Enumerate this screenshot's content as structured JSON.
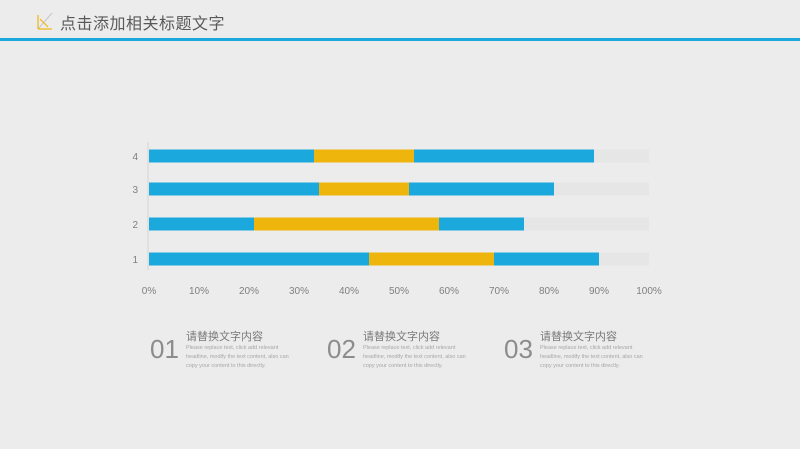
{
  "header": {
    "title": "点击添加相关标题文字",
    "accent_color": "#1ba8dc",
    "icon": "chart-line-icon"
  },
  "chart_data": {
    "type": "bar",
    "orientation": "horizontal",
    "stacked": true,
    "categories": [
      "1",
      "2",
      "3",
      "4"
    ],
    "series": [
      {
        "color": "#1ba8dc",
        "values": [
          44,
          21,
          34,
          33
        ]
      },
      {
        "color": "#eeb60d",
        "values": [
          25,
          37,
          18,
          20
        ]
      },
      {
        "color": "#1ba8dc",
        "values": [
          21,
          17,
          29,
          36
        ]
      },
      {
        "color": "#e6e6e6",
        "values": [
          10,
          25,
          19,
          11
        ]
      }
    ],
    "xlim": [
      0,
      100
    ],
    "x_ticks": [
      "0%",
      "10%",
      "20%",
      "30%",
      "40%",
      "50%",
      "60%",
      "70%",
      "80%",
      "90%",
      "100%"
    ],
    "grid": false,
    "legend": "none",
    "title": "",
    "xlabel": "",
    "ylabel": ""
  },
  "captions": [
    {
      "number": "01",
      "title": "请替换文字内容",
      "body": "Please replace text, click add relevant headline, modify the text content, also can copy your content to this directly."
    },
    {
      "number": "02",
      "title": "请替换文字内容",
      "body": "Please replace text, click add relevant headline, modify the text content, also can copy your content to this directly."
    },
    {
      "number": "03",
      "title": "请替换文字内容",
      "body": "Please replace text, click add relevant headline, modify the text content, also can copy your content to this directly."
    }
  ]
}
